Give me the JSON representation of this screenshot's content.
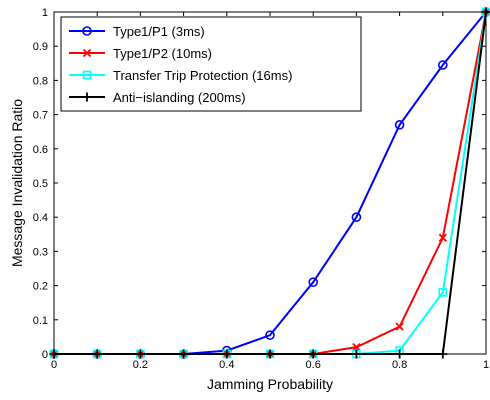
{
  "chart_data": {
    "type": "line",
    "xlabel": "Jamming Probability",
    "ylabel": "Message Invalidation Ratio",
    "xlim": [
      0,
      1
    ],
    "ylim": [
      0,
      1
    ],
    "xticks": [
      0,
      0.2,
      0.4,
      0.6,
      0.8,
      1
    ],
    "xtick_labels": [
      "0",
      "0.2",
      "0.4",
      "0.6",
      "0.8",
      "1"
    ],
    "yticks": [
      0,
      0.1,
      0.2,
      0.3,
      0.4,
      0.5,
      0.6,
      0.7,
      0.8,
      0.9,
      1
    ],
    "ytick_labels": [
      "0",
      "0.1",
      "0.2",
      "0.3",
      "0.4",
      "0.5",
      "0.6",
      "0.7",
      "0.8",
      "0.9",
      "1"
    ],
    "grid": false,
    "legend_position": "top-left",
    "series": [
      {
        "name": "Type1/P1 (3ms)",
        "color": "#0000ff",
        "marker": "circle",
        "x": [
          0,
          0.1,
          0.2,
          0.3,
          0.4,
          0.5,
          0.6,
          0.7,
          0.8,
          0.9,
          1.0
        ],
        "y": [
          0,
          0,
          0,
          0,
          0.01,
          0.055,
          0.21,
          0.4,
          0.67,
          0.845,
          1.0
        ]
      },
      {
        "name": "Type1/P2 (10ms)",
        "color": "#ff0000",
        "marker": "x",
        "x": [
          0,
          0.1,
          0.2,
          0.3,
          0.4,
          0.5,
          0.6,
          0.7,
          0.8,
          0.9,
          1.0
        ],
        "y": [
          0,
          0,
          0,
          0,
          0,
          0,
          0,
          0.02,
          0.08,
          0.34,
          1.0
        ]
      },
      {
        "name": "Transfer Trip Protection (16ms)",
        "color": "#00ffff",
        "marker": "square",
        "x": [
          0,
          0.1,
          0.2,
          0.3,
          0.4,
          0.5,
          0.6,
          0.7,
          0.8,
          0.9,
          1.0
        ],
        "y": [
          0,
          0,
          0,
          0,
          0,
          0,
          0,
          0,
          0.01,
          0.18,
          1.0
        ]
      },
      {
        "name": "Anti−islanding (200ms)",
        "color": "#000000",
        "marker": "plus",
        "x": [
          0,
          0.1,
          0.2,
          0.3,
          0.4,
          0.5,
          0.6,
          0.7,
          0.8,
          0.9,
          1.0
        ],
        "y": [
          0,
          0,
          0,
          0,
          0,
          0,
          0,
          0,
          0,
          0,
          1.0
        ]
      }
    ]
  }
}
